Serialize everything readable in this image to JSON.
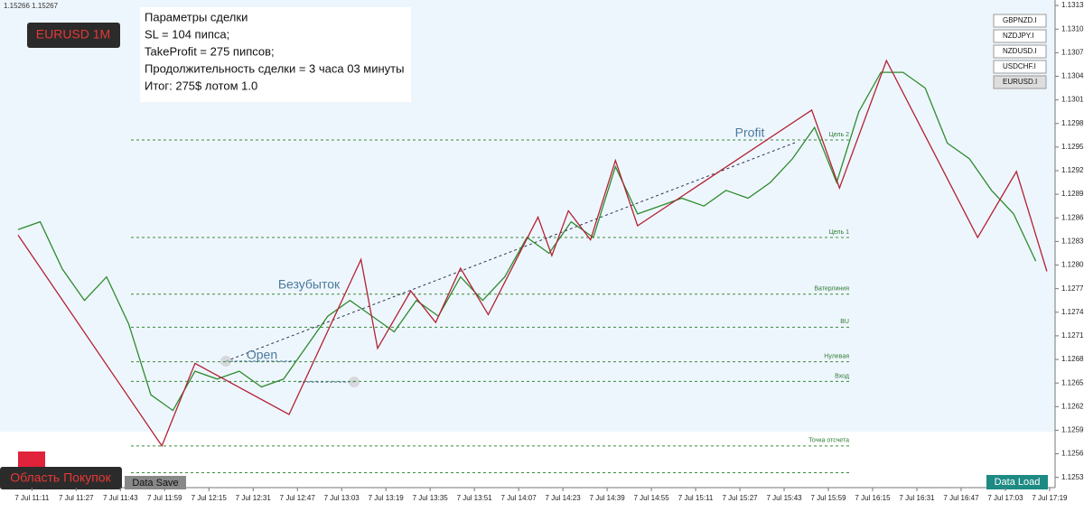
{
  "chart_data": {
    "type": "line",
    "header": "1.15266 1.15267",
    "symbol_badge": "EURUSD 1M",
    "info_box": [
      "Параметры сделки",
      "SL = 104 пипса;",
      "TakeProfit = 275 пипсов;",
      "Продолжительность сделки = 3 часа 03 минуты",
      "Итог: 275$ лотом 1.0"
    ],
    "annotations": [
      "Open",
      "Безубыток",
      "Profit"
    ],
    "symbols": [
      "GBPNZD.I",
      "NZDJPY.I",
      "NZDUSD.I",
      "USDCHF.I",
      "EURUSD.I"
    ],
    "zone_label": "Область Покупок",
    "buttons": [
      "Data Save",
      "Data Load"
    ],
    "xlim": [
      666,
      1040
    ],
    "ylim": [
      1.12522,
      1.13142
    ],
    "xticks": [
      {
        "value": 671,
        "label": "7 Jul 11:11"
      },
      {
        "value": 687,
        "label": "7 Jul 11:27"
      },
      {
        "value": 703,
        "label": "7 Jul 11:43"
      },
      {
        "value": 719,
        "label": "7 Jul 11:59"
      },
      {
        "value": 735,
        "label": "7 Jul 12:15"
      },
      {
        "value": 751,
        "label": "7 Jul 12:31"
      },
      {
        "value": 767,
        "label": "7 Jul 12:47"
      },
      {
        "value": 783,
        "label": "7 Jul 13:03"
      },
      {
        "value": 799,
        "label": "7 Jul 13:19"
      },
      {
        "value": 815,
        "label": "7 Jul 13:35"
      },
      {
        "value": 831,
        "label": "7 Jul 13:51"
      },
      {
        "value": 847,
        "label": "7 Jul 14:07"
      },
      {
        "value": 863,
        "label": "7 Jul 14:23"
      },
      {
        "value": 879,
        "label": "7 Jul 14:39"
      },
      {
        "value": 895,
        "label": "7 Jul 14:55"
      },
      {
        "value": 911,
        "label": "7 Jul 15:11"
      },
      {
        "value": 927,
        "label": "7 Jul 15:27"
      },
      {
        "value": 943,
        "label": "7 Jul 15:43"
      },
      {
        "value": 959,
        "label": "7 Jul 15:59"
      },
      {
        "value": 975,
        "label": "7 Jul 16:15"
      },
      {
        "value": 991,
        "label": "7 Jul 16:31"
      },
      {
        "value": 1007,
        "label": "7 Jul 16:47"
      },
      {
        "value": 1023,
        "label": "7 Jul 17:03"
      },
      {
        "value": 1039,
        "label": "7 Jul 17:19"
      }
    ],
    "yticks": [
      1.13135,
      1.13105,
      1.13075,
      1.13045,
      1.13015,
      1.12985,
      1.12955,
      1.12925,
      1.12895,
      1.12865,
      1.12835,
      1.12805,
      1.12775,
      1.12745,
      1.12715,
      1.12685,
      1.12655,
      1.12625,
      1.12595,
      1.12565,
      1.12535
    ],
    "levels": [
      {
        "value": 1.12964,
        "label": "Цель 2"
      },
      {
        "value": 1.1284,
        "label": "Цель 1"
      },
      {
        "value": 1.12768,
        "label": "Ватерлиния"
      },
      {
        "value": 1.12726,
        "label": "BU"
      },
      {
        "value": 1.12682,
        "label": "Нулевая"
      },
      {
        "value": 1.12657,
        "label": "Вход"
      },
      {
        "value": 1.12575,
        "label": "Точка отсчета"
      },
      {
        "value": 1.12541,
        "label": null
      }
    ],
    "series": [
      {
        "color": "#2e8b2e",
        "x": [
          666,
          674,
          682,
          690,
          698,
          706,
          714,
          722,
          730,
          738,
          746,
          754,
          762,
          770,
          778,
          786,
          794,
          802,
          810,
          818,
          826,
          834,
          842,
          850,
          858,
          866,
          874,
          882,
          890,
          898,
          906,
          914,
          922,
          930,
          938,
          946,
          954,
          962,
          970,
          978,
          986,
          994,
          1002,
          1010,
          1018,
          1026,
          1034
        ],
        "values": [
          1.1285,
          1.1286,
          1.128,
          1.1276,
          1.1279,
          1.1273,
          1.1264,
          1.1262,
          1.1267,
          1.1266,
          1.1267,
          1.1265,
          1.1266,
          1.127,
          1.1274,
          1.1276,
          1.1274,
          1.1272,
          1.1276,
          1.1274,
          1.1279,
          1.1276,
          1.1279,
          1.1284,
          1.1282,
          1.1286,
          1.1284,
          1.1293,
          1.1287,
          1.1288,
          1.1289,
          1.1288,
          1.129,
          1.1289,
          1.1291,
          1.1294,
          1.1298,
          1.1291,
          1.13,
          1.1305,
          1.1305,
          1.1303,
          1.1296,
          1.1294,
          1.129,
          1.1287,
          1.1281
        ]
      },
      {
        "color": "#b22234",
        "x": [
          666,
          718,
          730,
          764,
          790,
          796,
          808,
          817,
          826,
          836,
          854,
          859,
          865,
          873,
          882,
          890,
          953,
          963,
          980,
          1013,
          1027,
          1038
        ],
        "values": [
          1.12843,
          1.12575,
          1.1268,
          1.12615,
          1.12812,
          1.12699,
          1.12772,
          1.12732,
          1.12801,
          1.12742,
          1.12866,
          1.12817,
          1.12874,
          1.12837,
          1.12938,
          1.12855,
          1.13002,
          1.12903,
          1.13065,
          1.1284,
          1.12924,
          1.12797
        ]
      }
    ]
  }
}
